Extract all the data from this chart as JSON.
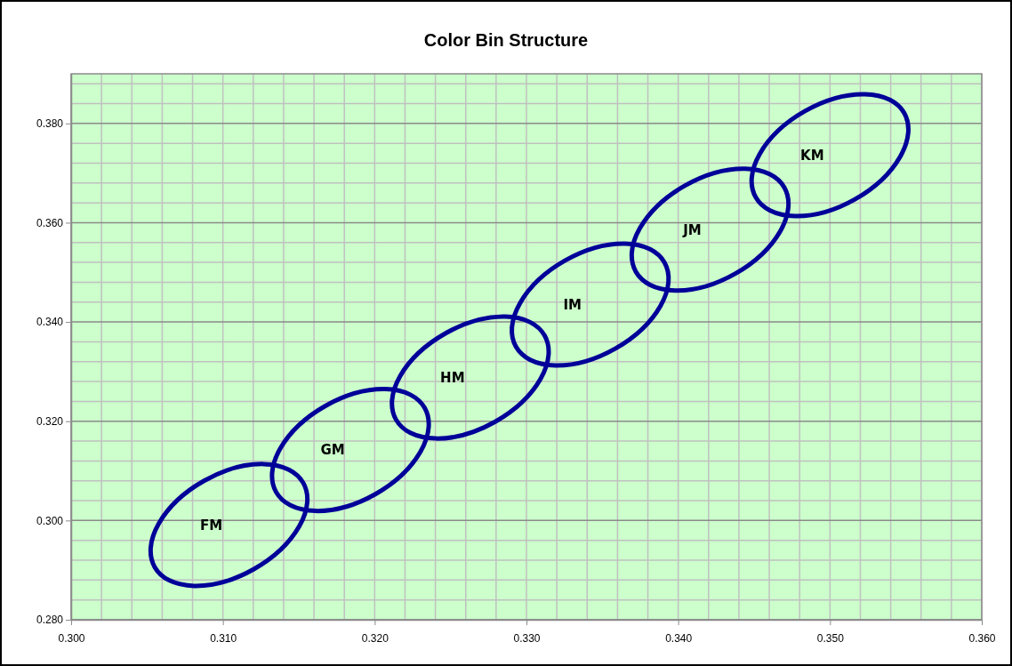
{
  "chart_data": {
    "type": "line",
    "title": "Color Bin Structure",
    "xlim": [
      0.3,
      0.36
    ],
    "ylim": [
      0.28,
      0.39
    ],
    "xticks": [
      {
        "value": 0.3,
        "label": "0.300"
      },
      {
        "value": 0.302,
        "label": null
      },
      {
        "value": 0.304,
        "label": null
      },
      {
        "value": 0.306,
        "label": null
      },
      {
        "value": 0.308,
        "label": null
      },
      {
        "value": 0.31,
        "label": "0.310"
      },
      {
        "value": 0.312,
        "label": null
      },
      {
        "value": 0.314,
        "label": null
      },
      {
        "value": 0.316,
        "label": null
      },
      {
        "value": 0.318,
        "label": null
      },
      {
        "value": 0.32,
        "label": "0.320"
      },
      {
        "value": 0.322,
        "label": null
      },
      {
        "value": 0.324,
        "label": null
      },
      {
        "value": 0.326,
        "label": null
      },
      {
        "value": 0.328,
        "label": null
      },
      {
        "value": 0.33,
        "label": "0.330"
      },
      {
        "value": 0.332,
        "label": null
      },
      {
        "value": 0.334,
        "label": null
      },
      {
        "value": 0.336,
        "label": null
      },
      {
        "value": 0.338,
        "label": null
      },
      {
        "value": 0.34,
        "label": "0.340"
      },
      {
        "value": 0.342,
        "label": null
      },
      {
        "value": 0.344,
        "label": null
      },
      {
        "value": 0.346,
        "label": null
      },
      {
        "value": 0.348,
        "label": null
      },
      {
        "value": 0.35,
        "label": "0.350"
      },
      {
        "value": 0.352,
        "label": null
      },
      {
        "value": 0.354,
        "label": null
      },
      {
        "value": 0.356,
        "label": null
      },
      {
        "value": 0.358,
        "label": null
      },
      {
        "value": 0.36,
        "label": "0.360"
      }
    ],
    "yticks": [
      {
        "value": 0.28,
        "label": "0.280"
      },
      {
        "value": 0.284,
        "label": null
      },
      {
        "value": 0.288,
        "label": null
      },
      {
        "value": 0.292,
        "label": null
      },
      {
        "value": 0.296,
        "label": null
      },
      {
        "value": 0.3,
        "label": "0.300"
      },
      {
        "value": 0.304,
        "label": null
      },
      {
        "value": 0.308,
        "label": null
      },
      {
        "value": 0.312,
        "label": null
      },
      {
        "value": 0.316,
        "label": null
      },
      {
        "value": 0.32,
        "label": "0.320"
      },
      {
        "value": 0.324,
        "label": null
      },
      {
        "value": 0.328,
        "label": null
      },
      {
        "value": 0.332,
        "label": null
      },
      {
        "value": 0.336,
        "label": null
      },
      {
        "value": 0.34,
        "label": "0.340"
      },
      {
        "value": 0.344,
        "label": null
      },
      {
        "value": 0.348,
        "label": null
      },
      {
        "value": 0.352,
        "label": null
      },
      {
        "value": 0.356,
        "label": null
      },
      {
        "value": 0.36,
        "label": "0.360"
      },
      {
        "value": 0.364,
        "label": null
      },
      {
        "value": 0.368,
        "label": null
      },
      {
        "value": 0.372,
        "label": null
      },
      {
        "value": 0.376,
        "label": null
      },
      {
        "value": 0.38,
        "label": "0.380"
      },
      {
        "value": 0.384,
        "label": null
      },
      {
        "value": 0.388,
        "label": null
      }
    ],
    "grid": true,
    "annotations": [
      "FM",
      "GM",
      "HM",
      "IM",
      "JM",
      "KM"
    ]
  }
}
